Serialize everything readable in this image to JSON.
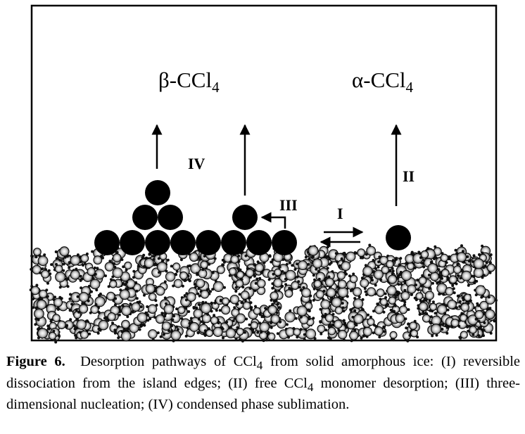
{
  "figure": {
    "label_beta": "β-CCl",
    "label_beta_sub": "4",
    "label_alpha": "α-CCl",
    "label_alpha_sub": "4",
    "roman_iv": "IV",
    "roman_iii": "III",
    "roman_ii": "II",
    "roman_i": "I"
  },
  "caption": {
    "figure_number": "Figure 6.",
    "text_1": "Desorption pathways of CCl",
    "sub_1": "4",
    "text_2": " from solid amorphous ice: (I) reversible dissociation from the island edges; (II) free CCl",
    "sub_2": "4",
    "text_3": " monomer desorption; (III) three-dimensional nucleation; (IV) condensed phase sublimation."
  }
}
